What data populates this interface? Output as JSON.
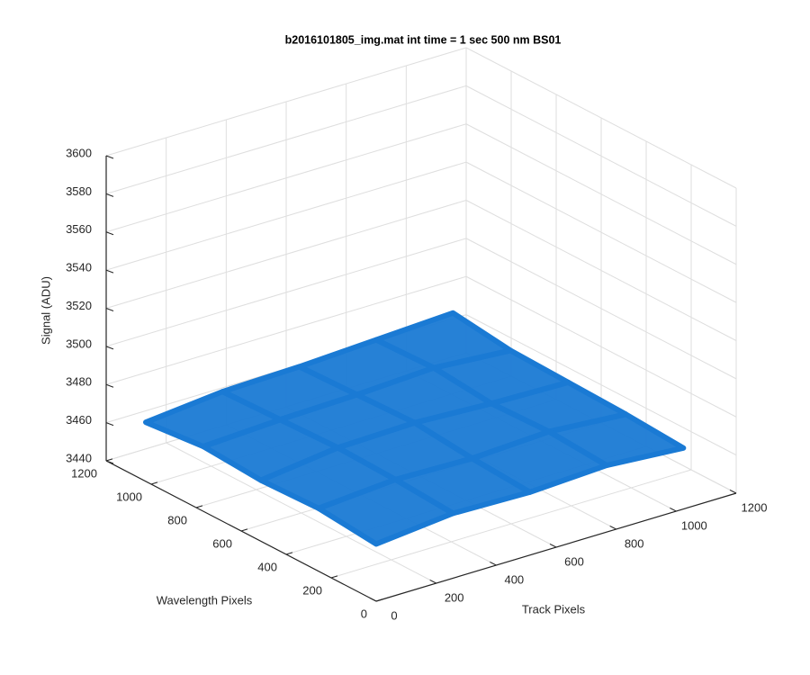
{
  "chart_data": {
    "type": "surface",
    "title": "b2016101805_img.mat int time = 1 sec  500 nm BS01",
    "xlabel": "Track Pixels",
    "ylabel": "Wavelength Pixels",
    "zlabel": "Signal (ADU)",
    "x": [
      0,
      256,
      512,
      768,
      1024
    ],
    "y": [
      0,
      256,
      512,
      768,
      1024
    ],
    "z": [
      [
        3470,
        3474,
        3473,
        3475,
        3472
      ],
      [
        3473,
        3476,
        3475,
        3477,
        3474
      ],
      [
        3472,
        3477,
        3478,
        3476,
        3475
      ],
      [
        3474,
        3476,
        3477,
        3479,
        3476
      ],
      [
        3471,
        3475,
        3476,
        3478,
        3480
      ]
    ],
    "color": "#1a7ad4",
    "xlim": [
      0,
      1200
    ],
    "xticks": [
      0,
      200,
      400,
      600,
      800,
      1000,
      1200
    ],
    "ylim": [
      0,
      1200
    ],
    "yticks": [
      0,
      200,
      400,
      600,
      800,
      1000,
      1200
    ],
    "zlim": [
      3440,
      3600
    ],
    "zticks": [
      3440,
      3460,
      3480,
      3500,
      3520,
      3540,
      3560,
      3580,
      3600
    ],
    "grid": true
  }
}
